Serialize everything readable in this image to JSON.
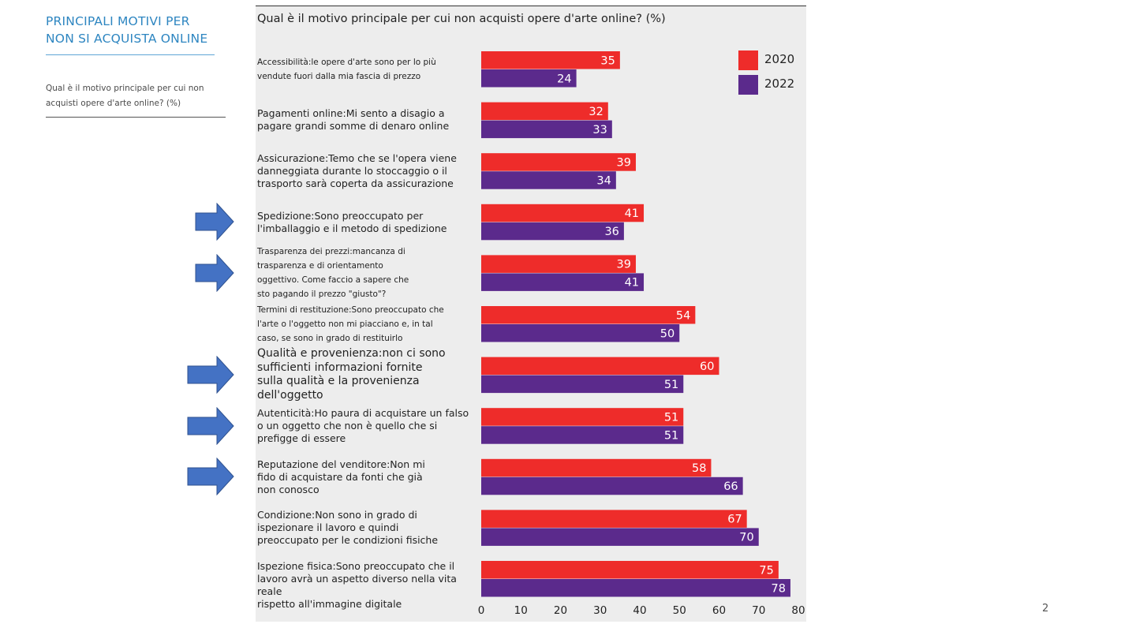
{
  "sidebar": {
    "title_line1": "PRINCIPALI MOTIVI PER",
    "title_line2": "NON SI ACQUISTA ONLINE",
    "subtitle_line1": "Qual è il motivo principale per cui non",
    "subtitle_line2": "acquisti opere d'arte online? (%)"
  },
  "page_number": "2",
  "colors": {
    "series_2020": "#ee2c2a",
    "series_2022": "#5b2a8c",
    "arrow": "#4472c4"
  },
  "chart_data": {
    "type": "bar",
    "orientation": "horizontal",
    "title": "Qual è il motivo principale per cui non acquisti opere d'arte online? (%)",
    "xlim": [
      0,
      80
    ],
    "xticks": [
      "0",
      "10",
      "20",
      "30",
      "40",
      "50",
      "60",
      "70",
      "80"
    ],
    "legend": [
      "2020",
      "2022"
    ],
    "legend_position": "top-right",
    "categories": [
      [
        "Accessibilità:le opere d'arte sono per lo più",
        "vendute fuori dalla mia fascia di prezzo"
      ],
      [
        "Pagamenti online:Mi sento a disagio a",
        "pagare grandi somme di denaro online"
      ],
      [
        "Assicurazione:Temo che se l'opera viene",
        "danneggiata durante lo stoccaggio o il",
        "trasporto sarà coperta da assicurazione"
      ],
      [
        "Spedizione:Sono preoccupato per",
        "l'imballaggio e il metodo di spedizione"
      ],
      [
        "Trasparenza dei prezzi:mancanza di",
        "trasparenza e di orientamento",
        "oggettivo. Come faccio a sapere che",
        "sto pagando il prezzo \"giusto\"?"
      ],
      [
        "Termini di restituzione:Sono preoccupato che",
        "l'arte o l'oggetto non mi piacciano e, in tal",
        "caso, se sono in grado di restituirlo"
      ],
      [
        "Qualità e provenienza:non ci sono",
        "sufficienti informazioni fornite",
        "sulla qualità e la provenienza",
        "dell'oggetto"
      ],
      [
        "Autenticità:Ho paura di acquistare un falso",
        "o un oggetto che non è quello che si",
        "prefigge di essere"
      ],
      [
        "Reputazione del venditore:Non mi",
        "fido di acquistare da fonti che già",
        "non conosco"
      ],
      [
        "Condizione:Non sono in grado di",
        "ispezionare il lavoro e quindi",
        "preoccupato per le condizioni fisiche"
      ],
      [
        "Ispezione fisica:Sono preoccupato che il",
        "lavoro avrà un aspetto diverso nella vita reale",
        "rispetto all'immagine digitale"
      ]
    ],
    "series": [
      {
        "name": "2020",
        "values": [
          35,
          32,
          39,
          41,
          39,
          54,
          60,
          51,
          58,
          67,
          75
        ]
      },
      {
        "name": "2022",
        "values": [
          24,
          33,
          34,
          36,
          41,
          50,
          51,
          51,
          66,
          70,
          78
        ]
      }
    ],
    "highlighted_categories": [
      3,
      4,
      6,
      7,
      8
    ]
  }
}
